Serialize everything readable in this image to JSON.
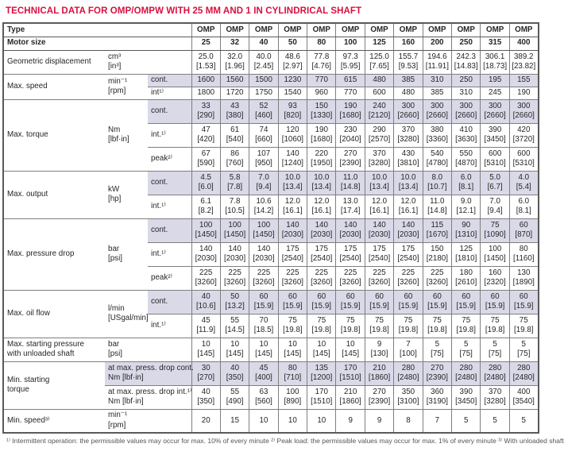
{
  "title": "TECHNICAL DATA FOR OMP/OMPW WITH 25 MM AND 1 IN CYLINDRICAL SHAFT",
  "colors": {
    "title_red": "#d8103f",
    "shaded_row": "#d9d9e8",
    "grid_border": "#7f7f7f",
    "outer_border": "#5a5a5a",
    "text": "#262626"
  },
  "table": {
    "header_rows": [
      {
        "label": "Type",
        "cells": [
          "OMP",
          "OMP",
          "OMP",
          "OMP",
          "OMP",
          "OMP",
          "OMP",
          "OMP",
          "OMP",
          "OMP",
          "OMP",
          "OMP"
        ]
      },
      {
        "label": "Motor size",
        "cells": [
          "25",
          "32",
          "40",
          "50",
          "80",
          "100",
          "125",
          "160",
          "200",
          "250",
          "315",
          "400"
        ]
      }
    ],
    "groups": [
      {
        "label": "Geometric displacement",
        "kind": "plain",
        "unit_lines": [
          "cm³",
          "[in³]"
        ],
        "rows": [
          {
            "shaded": false,
            "values": [
              "25.0",
              "32.0",
              "40.0",
              "48.6",
              "77.8",
              "97.3",
              "125.0",
              "155.7",
              "194.6",
              "242.3",
              "306.1",
              "389.2"
            ],
            "brackets": [
              "[1.53]",
              "[1.96]",
              "[2.45]",
              "[2.97]",
              "[4.76]",
              "[5.95]",
              "[7.65]",
              "[9.53]",
              "[11.91]",
              "[14.83]",
              "[18.73]",
              "[23.82]"
            ]
          }
        ]
      },
      {
        "label": "Max. speed",
        "kind": "subs",
        "unit_lines": [
          "min⁻¹",
          "[rpm]"
        ],
        "rows": [
          {
            "sub": "cont.",
            "shaded": true,
            "values": [
              "1600",
              "1560",
              "1500",
              "1230",
              "770",
              "615",
              "480",
              "385",
              "310",
              "250",
              "195",
              "155"
            ]
          },
          {
            "sub": "int¹⁾",
            "shaded": false,
            "values": [
              "1800",
              "1720",
              "1750",
              "1540",
              "960",
              "770",
              "600",
              "480",
              "385",
              "310",
              "245",
              "190"
            ]
          }
        ]
      },
      {
        "label": "Max. torque",
        "kind": "subs",
        "unit_lines": [
          "Nm",
          "[lbf·in]"
        ],
        "rows": [
          {
            "sub": "cont.",
            "shaded": true,
            "values": [
              "33",
              "43",
              "52",
              "93",
              "150",
              "190",
              "240",
              "300",
              "300",
              "300",
              "300",
              "300"
            ],
            "brackets": [
              "[290]",
              "[380]",
              "[460]",
              "[820]",
              "[1330]",
              "[1680]",
              "[2120]",
              "[2660]",
              "[2660]",
              "[2660]",
              "[2660]",
              "[2660]"
            ]
          },
          {
            "sub": "int.¹⁾",
            "shaded": false,
            "values": [
              "47",
              "61",
              "74",
              "120",
              "190",
              "230",
              "290",
              "370",
              "380",
              "410",
              "390",
              "420"
            ],
            "brackets": [
              "[420]",
              "[540]",
              "[660]",
              "[1060]",
              "[1680]",
              "[2040]",
              "[2570]",
              "[3280]",
              "[3360]",
              "[3630]",
              "[3450]",
              "[3720]"
            ]
          },
          {
            "sub": "peak²⁾",
            "shaded": false,
            "values": [
              "67",
              "86",
              "107",
              "140",
              "220",
              "270",
              "370",
              "430",
              "540",
              "550",
              "600",
              "600"
            ],
            "brackets": [
              "[590]",
              "[760]",
              "[950]",
              "[1240]",
              "[1950]",
              "[2390]",
              "[3280]",
              "[3810]",
              "[4780]",
              "[4870]",
              "[5310]",
              "[5310]"
            ]
          }
        ]
      },
      {
        "label": "Max. output",
        "kind": "subs",
        "unit_lines": [
          "kW",
          "[hp]"
        ],
        "rows": [
          {
            "sub": "cont.",
            "shaded": true,
            "values": [
              "4.5",
              "5.8",
              "7.0",
              "10.0",
              "10.0",
              "11.0",
              "10.0",
              "10.0",
              "8.0",
              "6.0",
              "5.0",
              "4.0"
            ],
            "brackets": [
              "[6.0]",
              "[7.8]",
              "[9.4]",
              "[13.4]",
              "[13.4]",
              "[14.8]",
              "[13.4]",
              "[13.4]",
              "[10.7]",
              "[8.1]",
              "[6.7]",
              "[5.4]"
            ]
          },
          {
            "sub": "int.¹⁾",
            "shaded": false,
            "values": [
              "6.1",
              "7.8",
              "10.6",
              "12.0",
              "12.0",
              "13.0",
              "12.0",
              "12.0",
              "11.0",
              "9.0",
              "7.0",
              "6.0"
            ],
            "brackets": [
              "[8.2]",
              "[10.5]",
              "[14.2]",
              "[16.1]",
              "[16.1]",
              "[17.4]",
              "[16.1]",
              "[16.1]",
              "[14.8]",
              "[12.1]",
              "[9.4]",
              "[8.1]"
            ]
          }
        ]
      },
      {
        "label": "Max. pressure drop",
        "kind": "subs",
        "unit_lines": [
          "bar",
          "[psi]"
        ],
        "rows": [
          {
            "sub": "cont.",
            "shaded": true,
            "values": [
              "100",
              "100",
              "100",
              "140",
              "140",
              "140",
              "140",
              "140",
              "115",
              "90",
              "75",
              "60"
            ],
            "brackets": [
              "[1450]",
              "[1450]",
              "[1450]",
              "[2030]",
              "[2030]",
              "[2030]",
              "[2030]",
              "[2030]",
              "[1670]",
              "[1310]",
              "[1090]",
              "[870]"
            ]
          },
          {
            "sub": "int.¹⁾",
            "shaded": false,
            "values": [
              "140",
              "140",
              "140",
              "175",
              "175",
              "175",
              "175",
              "175",
              "150",
              "125",
              "100",
              "80"
            ],
            "brackets": [
              "[2030]",
              "[2030]",
              "[2030]",
              "[2540]",
              "[2540]",
              "[2540]",
              "[2540]",
              "[2540]",
              "[2180]",
              "[1810]",
              "[1450]",
              "[1160]"
            ]
          },
          {
            "sub": "peak²⁾",
            "shaded": false,
            "values": [
              "225",
              "225",
              "225",
              "225",
              "225",
              "225",
              "225",
              "225",
              "225",
              "180",
              "160",
              "130"
            ],
            "brackets": [
              "[3260]",
              "[3260]",
              "[3260]",
              "[3260]",
              "[3260]",
              "[3260]",
              "[3260]",
              "[3260]",
              "[3260]",
              "[2610]",
              "[2320]",
              "[1890]"
            ]
          }
        ]
      },
      {
        "label": "Max. oil flow",
        "kind": "subs",
        "unit_lines": [
          "l/min",
          "[USgal/min]"
        ],
        "rows": [
          {
            "sub": "cont.",
            "shaded": true,
            "values": [
              "40",
              "50",
              "60",
              "60",
              "60",
              "60",
              "60",
              "60",
              "60",
              "60",
              "60",
              "60"
            ],
            "brackets": [
              "[10.6]",
              "[13.2]",
              "[15.9]",
              "[15.9]",
              "[15.9]",
              "[15.9]",
              "[15.9]",
              "[15.9]",
              "[15.9]",
              "[15.9]",
              "[15.9]",
              "[15.9]"
            ]
          },
          {
            "sub": "int.¹⁾",
            "shaded": false,
            "values": [
              "45",
              "55",
              "70",
              "75",
              "75",
              "75",
              "75",
              "75",
              "75",
              "75",
              "75",
              "75"
            ],
            "brackets": [
              "[11.9]",
              "[14.5]",
              "[18.5]",
              "[19.8]",
              "[19.8]",
              "[19.8]",
              "[19.8]",
              "[19.8]",
              "[19.8]",
              "[19.8]",
              "[19.8]",
              "[19.8]"
            ]
          }
        ]
      },
      {
        "label": "Max. starting pressure with unloaded shaft",
        "label_lines": [
          "Max. starting pressure",
          "with unloaded shaft"
        ],
        "kind": "plain",
        "unit_lines": [
          "bar",
          "[psi]"
        ],
        "rows": [
          {
            "shaded": false,
            "values": [
              "10",
              "10",
              "10",
              "10",
              "10",
              "10",
              "9",
              "7",
              "5",
              "5",
              "5",
              "5"
            ],
            "brackets": [
              "[145]",
              "[145]",
              "[145]",
              "[145]",
              "[145]",
              "[145]",
              "[130]",
              "[100]",
              "[75]",
              "[75]",
              "[75]",
              "[75]"
            ]
          }
        ]
      },
      {
        "label": "Min. starting torque",
        "label_lines": [
          "Min. starting",
          "torque"
        ],
        "kind": "wide",
        "rows": [
          {
            "sub_lines": [
              "at max. press. drop cont.",
              "Nm [lbf·in]"
            ],
            "shaded": true,
            "values": [
              "30",
              "40",
              "45",
              "80",
              "135",
              "170",
              "210",
              "280",
              "270",
              "280",
              "280",
              "280"
            ],
            "brackets": [
              "[270]",
              "[350]",
              "[400]",
              "[710]",
              "[1200]",
              "[1510]",
              "[1860]",
              "[2480]",
              "[2390]",
              "[2480]",
              "[2480]",
              "[2480]"
            ]
          },
          {
            "sub_lines": [
              "at max. press. drop int.¹⁾",
              "Nm [lbf·in]"
            ],
            "shaded": false,
            "values": [
              "40",
              "55",
              "63",
              "100",
              "170",
              "210",
              "270",
              "350",
              "360",
              "390",
              "370",
              "400"
            ],
            "brackets": [
              "[350]",
              "[490]",
              "[560]",
              "[890]",
              "[1510]",
              "[1860]",
              "[2390]",
              "[3100]",
              "[3190]",
              "[3450]",
              "[3280]",
              "[3540]"
            ]
          }
        ]
      },
      {
        "label": "Min. speed³⁾",
        "kind": "plain",
        "unit_lines": [
          "min⁻¹",
          "[rpm]"
        ],
        "rows": [
          {
            "shaded": false,
            "values": [
              "20",
              "15",
              "10",
              "10",
              "10",
              "9",
              "9",
              "8",
              "7",
              "5",
              "5",
              "5"
            ]
          }
        ]
      }
    ]
  },
  "footnote_cropped": "¹⁾ Intermittent operation: the permissible values may occur for max. 10% of every minute   ²⁾ Peak load: the permissible values may occur for max. 1% of every minute   ³⁾ With unloaded shaft"
}
